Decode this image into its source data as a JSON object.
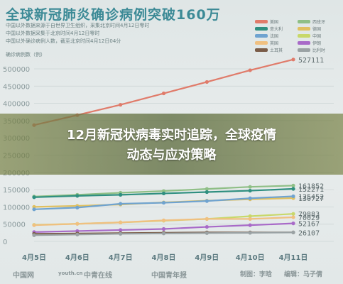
{
  "header": {
    "title": "全球新冠肺炎确诊病例突破160万",
    "notes": [
      "中国以外数据来源于自世界卫生组织，采集北京时间4月12日零时",
      "中国以外数据采集于北京时间4月12日零时",
      "中国以外确诊病例人数，截至北京时间4月12日04分"
    ]
  },
  "banner": {
    "line1": "12月新冠状病毒实时追踪，全球疫情",
    "line2": "动态与应对策略"
  },
  "footer": {
    "logo1": "中国网",
    "logo2": "youth.cn",
    "logo3": "中青在线",
    "publisher": "中国青年报",
    "producer": "制图：李晗",
    "editor": "编辑：马子倩"
  },
  "chart_data": {
    "type": "line",
    "ylabel": "确诊病例数（例）",
    "x": [
      "4月5日",
      "4月6日",
      "4月7日",
      "4月8日",
      "4月9日",
      "4月10日",
      "4月11日"
    ],
    "ylim": [
      0,
      550000
    ],
    "yticks": [
      0,
      50000,
      100000,
      150000,
      200000,
      250000,
      300000,
      350000,
      400000,
      450000,
      500000
    ],
    "grid": true,
    "legend": "top-right",
    "series": [
      {
        "name": "美国",
        "color": "#e07b6a",
        "values": [
          337000,
          366000,
          396000,
          429000,
          462000,
          496000,
          527111
        ]
      },
      {
        "name": "西班牙",
        "color": "#8fbf86",
        "values": [
          130000,
          135000,
          141000,
          146000,
          152000,
          158000,
          161852
        ]
      },
      {
        "name": "意大利",
        "color": "#2f8f80",
        "values": [
          128000,
          132000,
          135000,
          139000,
          143000,
          147000,
          152271
        ]
      },
      {
        "name": "德国",
        "color": "#e0c060",
        "values": [
          100000,
          103000,
          107000,
          113000,
          118000,
          122000,
          125452
        ]
      },
      {
        "name": "法国",
        "color": "#6fa3d0",
        "values": [
          93000,
          98000,
          109000,
          112000,
          117000,
          125000,
          130727
        ]
      },
      {
        "name": "中国",
        "color": "#c8d86a",
        "values": [
          48000,
          51000,
          55000,
          60000,
          65000,
          73000,
          79883
        ]
      },
      {
        "name": "英国",
        "color": "#f0c080",
        "values": [
          47000,
          51000,
          55000,
          61000,
          65000,
          65000,
          70029
        ]
      },
      {
        "name": "伊朗",
        "color": "#a86ac8",
        "values": [
          27000,
          30000,
          33000,
          36000,
          42000,
          47000,
          52167
        ]
      },
      {
        "name": "土耳其",
        "color": "#7a5c48",
        "values": [
          22000,
          23000,
          24000,
          25000,
          26000,
          26000,
          26107
        ]
      },
      {
        "name": "比利时",
        "color": "#9aa2a4",
        "values": [
          18000,
          20000,
          22000,
          23000,
          24000,
          25000,
          26000
        ]
      }
    ],
    "end_labels": [
      "527111",
      "161852",
      "152271",
      "130727",
      "125452",
      "79883",
      "70029",
      "52167",
      "26107"
    ]
  }
}
